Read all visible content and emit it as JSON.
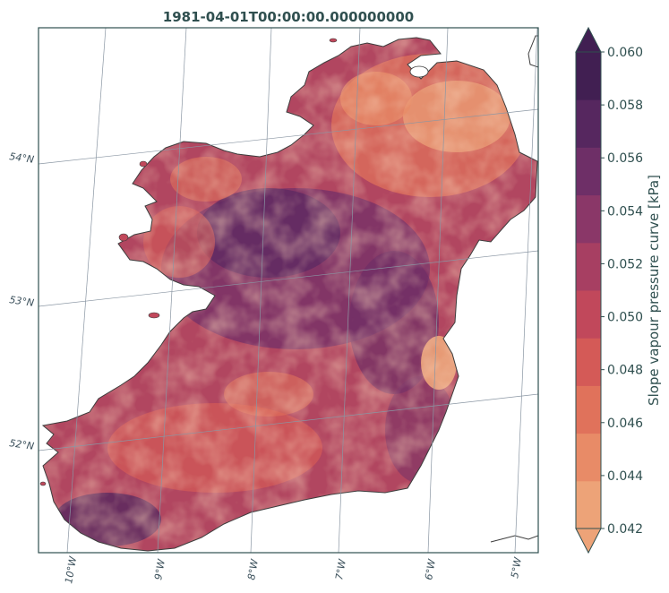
{
  "title": "1981-04-01T00:00:00.000000000",
  "lon_labels": [
    "10°W",
    "9°W",
    "8°W",
    "7°W",
    "6°W",
    "5°W"
  ],
  "lat_labels": [
    "54°N",
    "53°N",
    "52°N"
  ],
  "colorbar": {
    "label": "Slope vapour pressure curve [kPa]",
    "ticks": [
      "0.060",
      "0.058",
      "0.056",
      "0.054",
      "0.052",
      "0.050",
      "0.048",
      "0.046",
      "0.044",
      "0.042"
    ],
    "range": [
      0.042,
      0.06
    ],
    "step": 0.002,
    "extend": "both",
    "colors": [
      "#eda378",
      "#e88b67",
      "#e0725b",
      "#d45a57",
      "#c1485b",
      "#a73f62",
      "#8a3768",
      "#6e2f67",
      "#56275f",
      "#411f52"
    ]
  },
  "chart_data": {
    "type": "heatmap",
    "title": "1981-04-01T00:00:00.000000000",
    "variable_label": "Slope vapour pressure curve [kPa]",
    "region": "Ireland",
    "lon_ticks": [
      "10°W",
      "9°W",
      "8°W",
      "7°W",
      "6°W",
      "5°W"
    ],
    "lat_ticks": [
      "54°N",
      "53°N",
      "52°N"
    ],
    "value_range": [
      0.042,
      0.06
    ],
    "gridlines": true
  }
}
